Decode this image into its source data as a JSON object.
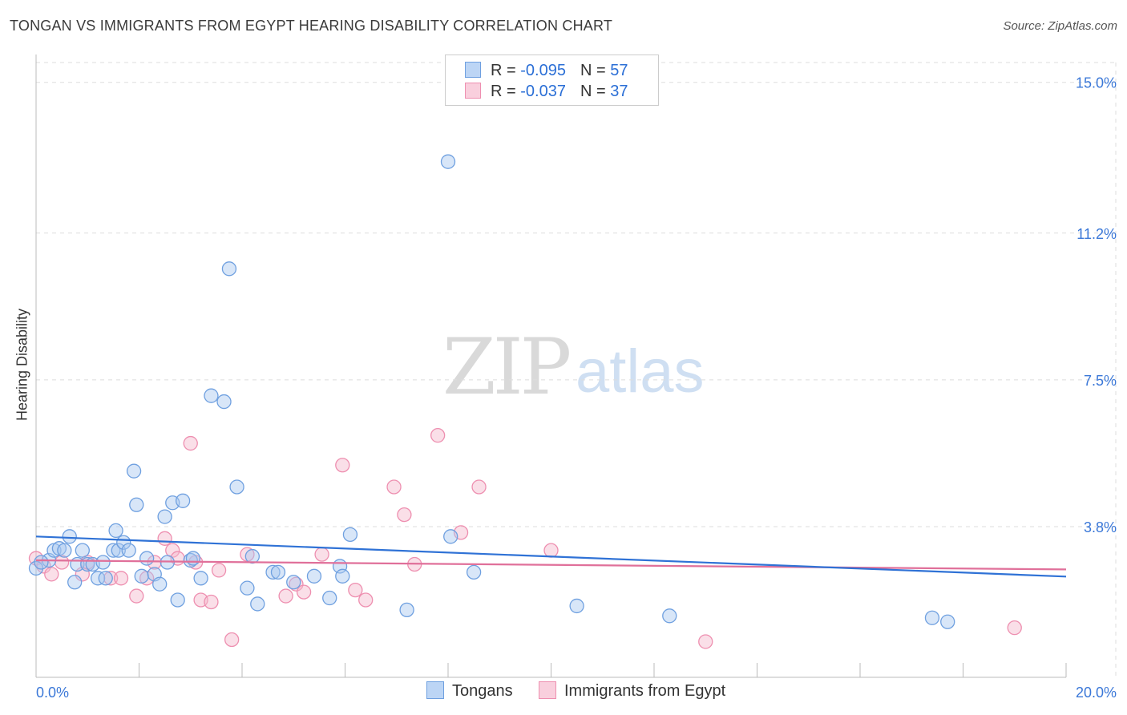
{
  "header": {
    "title": "TONGAN VS IMMIGRANTS FROM EGYPT HEARING DISABILITY CORRELATION CHART",
    "source": "Source: ZipAtlas.com"
  },
  "watermark": {
    "zip": "ZIP",
    "atlas": "atlas"
  },
  "legend": {
    "rows": [
      {
        "r_label": "R = ",
        "r_value": "-0.095",
        "n_label": "N = ",
        "n_value": "57"
      },
      {
        "r_label": "R = ",
        "r_value": "-0.037",
        "n_label": "N = ",
        "n_value": "37"
      }
    ]
  },
  "colors": {
    "tongans_fill": "#a9c8f0",
    "tongans_stroke": "#6fa0e0",
    "tongans_line": "#2f72d6",
    "egypt_fill": "#f5b8cc",
    "egypt_stroke": "#ee8fb0",
    "egypt_line": "#e0709a",
    "axis_label": "#3b78d8",
    "grid": "#dddddd"
  },
  "chart_data": {
    "type": "scatter",
    "title": "TONGAN VS IMMIGRANTS FROM EGYPT HEARING DISABILITY CORRELATION CHART",
    "xlabel": "",
    "ylabel": "Hearing Disability",
    "xlim": [
      0,
      20
    ],
    "ylim": [
      0,
      15.5
    ],
    "x_tick_labels": [
      "0.0%",
      "20.0%"
    ],
    "y_ticks": [
      3.8,
      7.5,
      11.2,
      15.0
    ],
    "y_tick_labels": [
      "3.8%",
      "7.5%",
      "11.2%",
      "15.0%"
    ],
    "grid": true,
    "legend_position": "bottom",
    "series": [
      {
        "name": "Tongans",
        "r": -0.095,
        "n": 57,
        "trend": {
          "x": [
            0,
            20
          ],
          "y": [
            3.55,
            2.54
          ]
        },
        "points": [
          [
            0.0,
            2.75
          ],
          [
            0.25,
            2.95
          ],
          [
            0.35,
            3.2
          ],
          [
            0.45,
            3.25
          ],
          [
            0.55,
            3.2
          ],
          [
            0.65,
            3.55
          ],
          [
            0.75,
            2.4
          ],
          [
            0.8,
            2.85
          ],
          [
            0.9,
            3.2
          ],
          [
            1.0,
            2.85
          ],
          [
            1.1,
            2.85
          ],
          [
            1.2,
            2.5
          ],
          [
            1.3,
            2.9
          ],
          [
            1.35,
            2.5
          ],
          [
            1.5,
            3.2
          ],
          [
            1.55,
            3.7
          ],
          [
            1.6,
            3.2
          ],
          [
            1.7,
            3.4
          ],
          [
            1.8,
            3.2
          ],
          [
            1.9,
            5.2
          ],
          [
            1.95,
            4.35
          ],
          [
            2.05,
            2.55
          ],
          [
            2.15,
            3.0
          ],
          [
            2.3,
            2.6
          ],
          [
            2.4,
            2.35
          ],
          [
            2.5,
            4.05
          ],
          [
            2.55,
            2.9
          ],
          [
            2.65,
            4.4
          ],
          [
            2.75,
            1.95
          ],
          [
            2.85,
            4.45
          ],
          [
            3.0,
            2.95
          ],
          [
            3.05,
            3.0
          ],
          [
            3.2,
            2.5
          ],
          [
            3.4,
            7.1
          ],
          [
            3.65,
            6.95
          ],
          [
            3.75,
            10.3
          ],
          [
            3.9,
            4.8
          ],
          [
            4.1,
            2.25
          ],
          [
            4.2,
            3.05
          ],
          [
            4.3,
            1.85
          ],
          [
            4.6,
            2.65
          ],
          [
            4.7,
            2.65
          ],
          [
            5.0,
            2.4
          ],
          [
            5.4,
            2.55
          ],
          [
            5.7,
            2.0
          ],
          [
            5.9,
            2.8
          ],
          [
            5.95,
            2.55
          ],
          [
            6.1,
            3.6
          ],
          [
            7.2,
            1.7
          ],
          [
            8.0,
            13.0
          ],
          [
            8.05,
            3.55
          ],
          [
            8.5,
            2.65
          ],
          [
            10.5,
            1.8
          ],
          [
            12.3,
            1.55
          ],
          [
            17.4,
            1.5
          ],
          [
            17.7,
            1.4
          ],
          [
            0.1,
            2.9
          ]
        ]
      },
      {
        "name": "Immigrants from Egypt",
        "r": -0.037,
        "n": 37,
        "trend": {
          "x": [
            0,
            20
          ],
          "y": [
            2.95,
            2.72
          ]
        },
        "points": [
          [
            0.0,
            3.0
          ],
          [
            0.15,
            2.8
          ],
          [
            0.3,
            2.6
          ],
          [
            0.5,
            2.9
          ],
          [
            0.9,
            2.6
          ],
          [
            1.0,
            2.9
          ],
          [
            1.45,
            2.5
          ],
          [
            1.65,
            2.5
          ],
          [
            1.95,
            2.05
          ],
          [
            2.15,
            2.5
          ],
          [
            2.3,
            2.9
          ],
          [
            2.5,
            3.5
          ],
          [
            2.65,
            3.2
          ],
          [
            3.0,
            5.9
          ],
          [
            3.1,
            2.9
          ],
          [
            3.2,
            1.95
          ],
          [
            3.4,
            1.9
          ],
          [
            3.55,
            2.7
          ],
          [
            3.8,
            0.95
          ],
          [
            4.1,
            3.1
          ],
          [
            4.85,
            2.05
          ],
          [
            5.05,
            2.35
          ],
          [
            5.2,
            2.15
          ],
          [
            5.55,
            3.1
          ],
          [
            5.95,
            5.35
          ],
          [
            6.2,
            2.2
          ],
          [
            6.4,
            1.95
          ],
          [
            6.95,
            4.8
          ],
          [
            7.15,
            4.1
          ],
          [
            7.35,
            2.85
          ],
          [
            7.8,
            6.1
          ],
          [
            8.25,
            3.65
          ],
          [
            8.6,
            4.8
          ],
          [
            10.0,
            3.2
          ],
          [
            13.0,
            0.9
          ],
          [
            19.0,
            1.25
          ],
          [
            2.75,
            3.0
          ]
        ]
      }
    ]
  },
  "bottom_legend": {
    "tongans": "Tongans",
    "egypt": "Immigrants from Egypt"
  }
}
